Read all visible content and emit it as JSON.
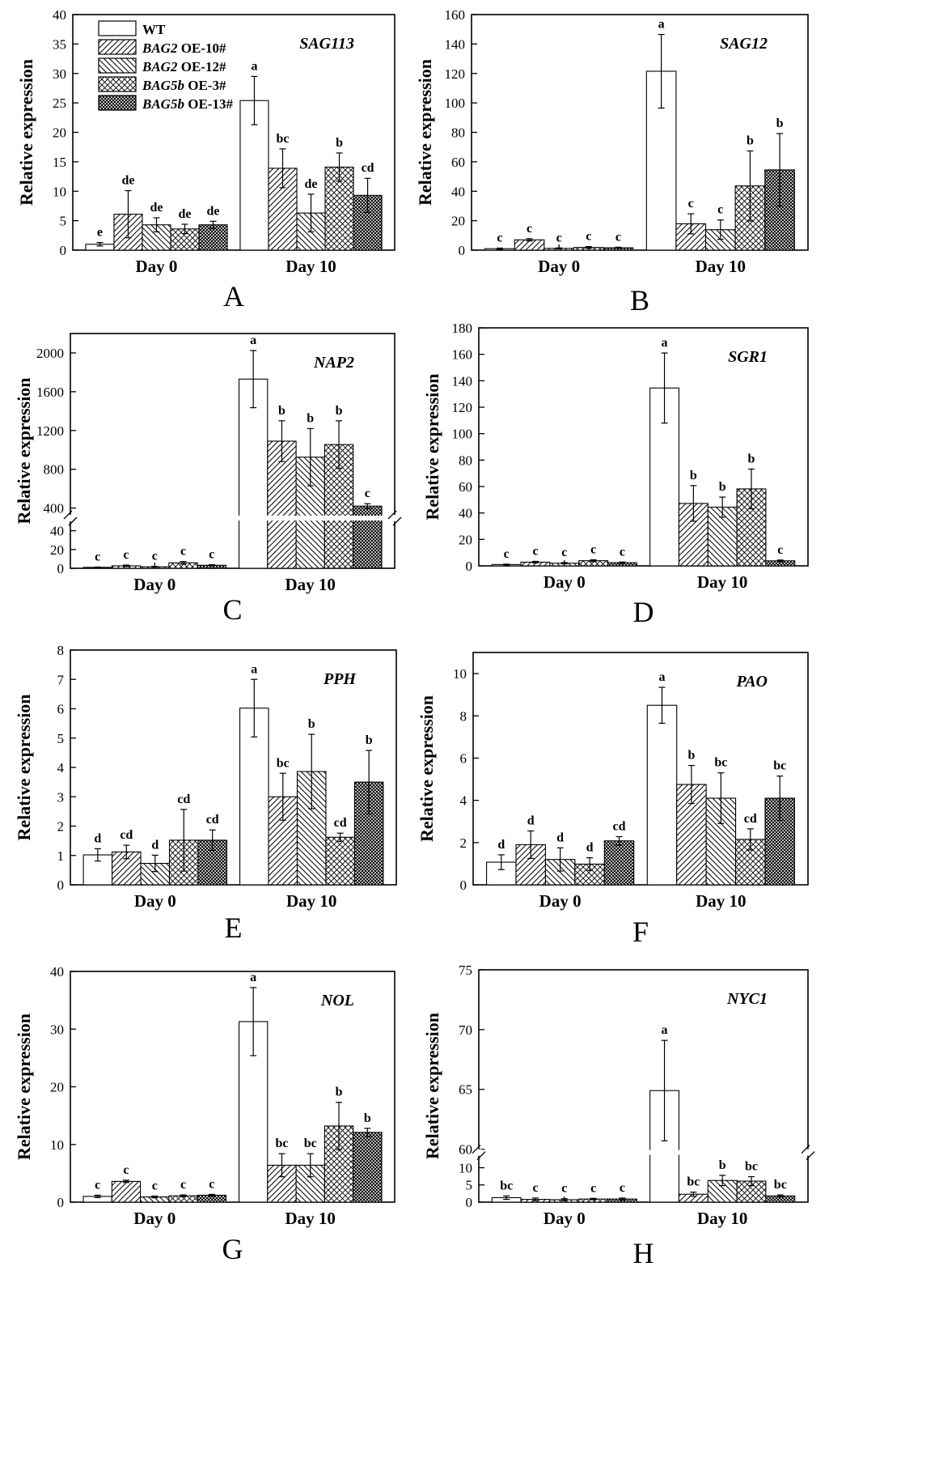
{
  "ylabel": "Relative expression",
  "groups": [
    "Day 0",
    "Day 10"
  ],
  "legend": [
    {
      "italic": "",
      "rest": "WT"
    },
    {
      "italic": "BAG2",
      "rest": " OE-10#"
    },
    {
      "italic": "BAG2",
      "rest": " OE-12#"
    },
    {
      "italic": "BAG5b",
      "rest": " OE-3#"
    },
    {
      "italic": "BAG5b",
      "rest": " OE-13#"
    }
  ],
  "chart_data": [
    {
      "type": "bar",
      "panel": "A",
      "title": "SAG113",
      "categories": [
        "Day 0",
        "Day 10"
      ],
      "ylim": [
        0,
        40
      ],
      "yticks": [
        0,
        5,
        10,
        15,
        20,
        25,
        30,
        35,
        40
      ],
      "series": [
        {
          "name": "WT",
          "values": [
            1.0,
            25.4
          ],
          "errors": [
            0.3,
            4.1
          ],
          "letters": [
            "e",
            "a"
          ]
        },
        {
          "name": "BAG2 OE-10#",
          "values": [
            6.1,
            13.9
          ],
          "errors": [
            4.0,
            3.3
          ],
          "letters": [
            "de",
            "bc"
          ]
        },
        {
          "name": "BAG2 OE-12#",
          "values": [
            4.3,
            6.3
          ],
          "errors": [
            1.2,
            3.2
          ],
          "letters": [
            "de",
            "de"
          ]
        },
        {
          "name": "BAG5b OE-3#",
          "values": [
            3.6,
            14.1
          ],
          "errors": [
            0.8,
            2.4
          ],
          "letters": [
            "de",
            "b"
          ]
        },
        {
          "name": "BAG5b OE-13#",
          "values": [
            4.3,
            9.3
          ],
          "errors": [
            0.6,
            2.9
          ],
          "letters": [
            "de",
            "cd"
          ]
        }
      ]
    },
    {
      "type": "bar",
      "panel": "B",
      "title": "SAG12",
      "categories": [
        "Day 0",
        "Day 10"
      ],
      "ylim": [
        0,
        160
      ],
      "yticks": [
        0,
        20,
        40,
        60,
        80,
        100,
        120,
        140,
        160
      ],
      "series": [
        {
          "name": "WT",
          "values": [
            1.0,
            121.5
          ],
          "errors": [
            0.4,
            25.0
          ],
          "letters": [
            "c",
            "a"
          ]
        },
        {
          "name": "BAG2 OE-10#",
          "values": [
            7.0,
            17.9
          ],
          "errors": [
            0.8,
            6.8
          ],
          "letters": [
            "c",
            "c"
          ]
        },
        {
          "name": "BAG2 OE-12#",
          "values": [
            1.2,
            13.9
          ],
          "errors": [
            0.3,
            6.6
          ],
          "letters": [
            "c",
            "c"
          ]
        },
        {
          "name": "BAG5b OE-3#",
          "values": [
            1.8,
            43.6
          ],
          "errors": [
            0.6,
            23.8
          ],
          "letters": [
            "c",
            "b"
          ]
        },
        {
          "name": "BAG5b OE-13#",
          "values": [
            1.6,
            54.5
          ],
          "errors": [
            0.4,
            24.7
          ],
          "letters": [
            "c",
            "b"
          ]
        }
      ]
    },
    {
      "type": "bar",
      "panel": "C",
      "title": "NAP2",
      "categories": [
        "Day 0",
        "Day 10"
      ],
      "axis_break": {
        "low": [
          0,
          50
        ],
        "high": [
          330,
          2200
        ]
      },
      "yticks_low": [
        0,
        20,
        40
      ],
      "yticks_high": [
        400,
        800,
        1200,
        1600,
        2000
      ],
      "series": [
        {
          "name": "WT",
          "values": [
            1.0,
            1730
          ],
          "errors": [
            0.3,
            295
          ],
          "letters": [
            "c",
            "a"
          ]
        },
        {
          "name": "BAG2 OE-10#",
          "values": [
            2.6,
            1090
          ],
          "errors": [
            0.8,
            210
          ],
          "letters": [
            "c",
            "b"
          ]
        },
        {
          "name": "BAG2 OE-12#",
          "values": [
            1.6,
            925
          ],
          "errors": [
            0.4,
            295
          ],
          "letters": [
            "c",
            "b"
          ]
        },
        {
          "name": "BAG5b OE-3#",
          "values": [
            5.8,
            1055
          ],
          "errors": [
            1.4,
            245
          ],
          "letters": [
            "c",
            "b"
          ]
        },
        {
          "name": "BAG5b OE-13#",
          "values": [
            3.2,
            420
          ],
          "errors": [
            0.6,
            25
          ],
          "letters": [
            "c",
            "c"
          ]
        }
      ]
    },
    {
      "type": "bar",
      "panel": "D",
      "title": "SGR1",
      "categories": [
        "Day 0",
        "Day 10"
      ],
      "ylim": [
        0,
        180
      ],
      "yticks": [
        0,
        20,
        40,
        60,
        80,
        100,
        120,
        140,
        160,
        180
      ],
      "series": [
        {
          "name": "WT",
          "values": [
            1.0,
            134.5
          ],
          "errors": [
            0.3,
            26.5
          ],
          "letters": [
            "c",
            "a"
          ]
        },
        {
          "name": "BAG2 OE-10#",
          "values": [
            2.8,
            47.2
          ],
          "errors": [
            0.6,
            13.5
          ],
          "letters": [
            "c",
            "b"
          ]
        },
        {
          "name": "BAG2 OE-12#",
          "values": [
            2.0,
            44.4
          ],
          "errors": [
            0.5,
            7.6
          ],
          "letters": [
            "c",
            "b"
          ]
        },
        {
          "name": "BAG5b OE-3#",
          "values": [
            3.9,
            58.2
          ],
          "errors": [
            0.7,
            15.0
          ],
          "letters": [
            "c",
            "b"
          ]
        },
        {
          "name": "BAG5b OE-13#",
          "values": [
            2.4,
            3.8
          ],
          "errors": [
            0.5,
            0.6
          ],
          "letters": [
            "c",
            "c"
          ]
        }
      ]
    },
    {
      "type": "bar",
      "panel": "E",
      "title": "PPH",
      "categories": [
        "Day 0",
        "Day 10"
      ],
      "ylim": [
        0,
        8
      ],
      "yticks": [
        0,
        1,
        2,
        3,
        4,
        5,
        6,
        7,
        8
      ],
      "series": [
        {
          "name": "WT",
          "values": [
            1.02,
            6.02
          ],
          "errors": [
            0.21,
            0.98
          ],
          "letters": [
            "d",
            "a"
          ]
        },
        {
          "name": "BAG2 OE-10#",
          "values": [
            1.12,
            3.0
          ],
          "errors": [
            0.23,
            0.8
          ],
          "letters": [
            "cd",
            "bc"
          ]
        },
        {
          "name": "BAG2 OE-12#",
          "values": [
            0.73,
            3.86
          ],
          "errors": [
            0.28,
            1.27
          ],
          "letters": [
            "d",
            "b"
          ]
        },
        {
          "name": "BAG5b OE-3#",
          "values": [
            1.52,
            1.62
          ],
          "errors": [
            1.05,
            0.14
          ],
          "letters": [
            "cd",
            "cd"
          ]
        },
        {
          "name": "BAG5b OE-13#",
          "values": [
            1.52,
            3.5
          ],
          "errors": [
            0.35,
            1.08
          ],
          "letters": [
            "cd",
            "b"
          ]
        }
      ]
    },
    {
      "type": "bar",
      "panel": "F",
      "title": "PAO",
      "categories": [
        "Day 0",
        "Day 10"
      ],
      "ylim": [
        0,
        11
      ],
      "yticks": [
        0,
        2,
        4,
        6,
        8,
        10
      ],
      "series": [
        {
          "name": "WT",
          "values": [
            1.07,
            8.5
          ],
          "errors": [
            0.35,
            0.85
          ],
          "letters": [
            "d",
            "a"
          ]
        },
        {
          "name": "BAG2 OE-10#",
          "values": [
            1.9,
            4.75
          ],
          "errors": [
            0.65,
            0.9
          ],
          "letters": [
            "d",
            "b"
          ]
        },
        {
          "name": "BAG2 OE-12#",
          "values": [
            1.2,
            4.1
          ],
          "errors": [
            0.55,
            1.2
          ],
          "letters": [
            "d",
            "bc"
          ]
        },
        {
          "name": "BAG5b OE-3#",
          "values": [
            0.98,
            2.15
          ],
          "errors": [
            0.3,
            0.5
          ],
          "letters": [
            "d",
            "cd"
          ]
        },
        {
          "name": "BAG5b OE-13#",
          "values": [
            2.08,
            4.1
          ],
          "errors": [
            0.2,
            1.05
          ],
          "letters": [
            "cd",
            "bc"
          ]
        }
      ]
    },
    {
      "type": "bar",
      "panel": "G",
      "title": "NOL",
      "categories": [
        "Day 0",
        "Day 10"
      ],
      "ylim": [
        0,
        40
      ],
      "yticks": [
        0,
        10,
        20,
        30,
        40
      ],
      "series": [
        {
          "name": "WT",
          "values": [
            1.0,
            31.3
          ],
          "errors": [
            0.2,
            5.9
          ],
          "letters": [
            "c",
            "a"
          ]
        },
        {
          "name": "BAG2 OE-10#",
          "values": [
            3.6,
            6.4
          ],
          "errors": [
            0.2,
            2.0
          ],
          "letters": [
            "c",
            "bc"
          ]
        },
        {
          "name": "BAG2 OE-12#",
          "values": [
            0.9,
            6.4
          ],
          "errors": [
            0.15,
            2.0
          ],
          "letters": [
            "c",
            "bc"
          ]
        },
        {
          "name": "BAG5b OE-3#",
          "values": [
            1.1,
            13.2
          ],
          "errors": [
            0.15,
            4.1
          ],
          "letters": [
            "c",
            "b"
          ]
        },
        {
          "name": "BAG5b OE-13#",
          "values": [
            1.2,
            12.1
          ],
          "errors": [
            0.15,
            0.7
          ],
          "letters": [
            "c",
            "b"
          ]
        }
      ]
    },
    {
      "type": "bar",
      "panel": "H",
      "title": "NYC1",
      "categories": [
        "Day 0",
        "Day 10"
      ],
      "axis_break": {
        "low": [
          0,
          13.5
        ],
        "high": [
          60,
          75
        ]
      },
      "yticks_low": [
        0,
        5,
        10
      ],
      "yticks_high": [
        60,
        65,
        70,
        75
      ],
      "series": [
        {
          "name": "WT",
          "values": [
            1.3,
            64.9
          ],
          "errors": [
            0.5,
            4.2
          ],
          "letters": [
            "bc",
            "a"
          ]
        },
        {
          "name": "BAG2 OE-10#",
          "values": [
            0.8,
            2.3
          ],
          "errors": [
            0.4,
            0.6
          ],
          "letters": [
            "c",
            "bc"
          ]
        },
        {
          "name": "BAG2 OE-12#",
          "values": [
            0.7,
            6.3
          ],
          "errors": [
            0.3,
            1.5
          ],
          "letters": [
            "c",
            "b"
          ]
        },
        {
          "name": "BAG5b OE-3#",
          "values": [
            0.9,
            6.1
          ],
          "errors": [
            0.2,
            1.3
          ],
          "letters": [
            "c",
            "bc"
          ]
        },
        {
          "name": "BAG5b OE-13#",
          "values": [
            0.9,
            1.8
          ],
          "errors": [
            0.3,
            0.3
          ],
          "letters": [
            "c",
            "bc"
          ]
        }
      ]
    }
  ]
}
